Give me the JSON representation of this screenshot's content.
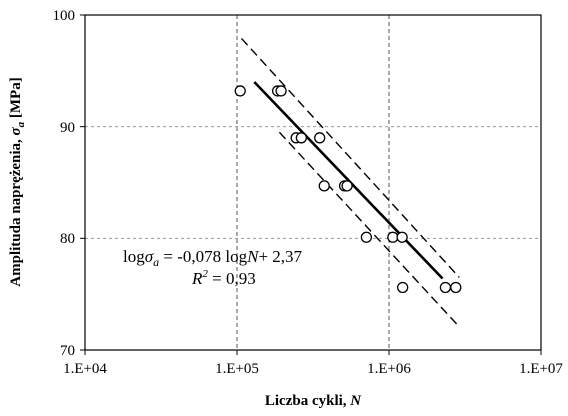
{
  "chart_data": {
    "type": "scatter",
    "xscale": "log",
    "xlim": [
      10000,
      10000000
    ],
    "ylim": [
      70,
      100
    ],
    "x_ticks": [
      "1.E+04",
      "1.E+05",
      "1.E+06",
      "1.E+07"
    ],
    "y_ticks": [
      "70",
      "80",
      "90",
      "100"
    ],
    "xlabel_main": "Liczba cykli, ",
    "xlabel_var": "N",
    "ylabel_main": "Amplituda naprężenia, ",
    "ylabel_var": "σ",
    "ylabel_sub": "a",
    "ylabel_unit": " [MPa]",
    "grid": "dashed, at decades and every 10 MPa",
    "points": [
      {
        "x": 105000,
        "y": 93.2
      },
      {
        "x": 185000,
        "y": 93.2
      },
      {
        "x": 195000,
        "y": 93.2
      },
      {
        "x": 245000,
        "y": 89.0
      },
      {
        "x": 265000,
        "y": 89.0
      },
      {
        "x": 350000,
        "y": 89.0
      },
      {
        "x": 375000,
        "y": 84.7
      },
      {
        "x": 510000,
        "y": 84.7
      },
      {
        "x": 530000,
        "y": 84.7
      },
      {
        "x": 710000,
        "y": 80.1
      },
      {
        "x": 1060000,
        "y": 80.1
      },
      {
        "x": 1220000,
        "y": 80.1
      },
      {
        "x": 1230000,
        "y": 75.6
      },
      {
        "x": 2350000,
        "y": 75.6
      },
      {
        "x": 2750000,
        "y": 75.6
      }
    ],
    "fit_line": [
      {
        "x": 130000,
        "y": 94.0
      },
      {
        "x": 2250000,
        "y": 76.4
      }
    ],
    "upper_band": [
      {
        "x": 107000,
        "y": 97.9
      },
      {
        "x": 2900000,
        "y": 76.5
      }
    ],
    "lower_band": [
      {
        "x": 190000,
        "y": 89.5
      },
      {
        "x": 2800000,
        "y": 72.3
      }
    ],
    "equation": {
      "left": "log",
      "sigma": "σ",
      "sub": "a",
      "rhs_1": " = -0,078 log",
      "var_n": "N",
      "rhs_2": "+ 2,37"
    },
    "r2": {
      "r": "R",
      "sup": "2",
      "rhs": " = 0,93"
    }
  }
}
